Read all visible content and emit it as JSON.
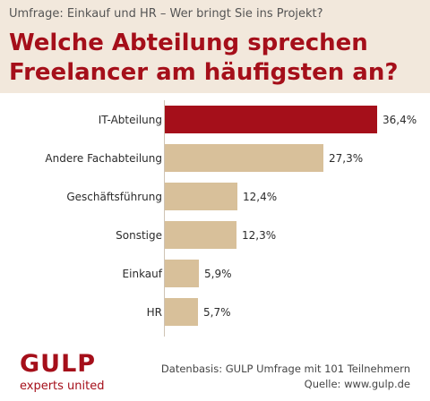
{
  "header": {
    "subtitle": "Umfrage: Einkauf und HR – Wer bringt Sie ins Projekt?",
    "title": "Welche Abteilung sprechen Freelancer am häufigsten an?"
  },
  "chart_data": {
    "type": "bar",
    "orientation": "horizontal",
    "categories": [
      "IT-Abteilung",
      "Andere Fachabteilung",
      "Geschäftsführung",
      "Sonstige",
      "Einkauf",
      "HR"
    ],
    "values": [
      36.4,
      27.3,
      12.4,
      12.3,
      5.9,
      5.7
    ],
    "value_labels": [
      "36,4%",
      "27,3%",
      "12,4%",
      "12,3%",
      "5,9%",
      "5,7%"
    ],
    "unit": "%",
    "xlim": [
      0,
      40
    ],
    "highlight_color": "#a50f1a",
    "bar_color": "#d8c09a",
    "highlight_index": 0
  },
  "footer": {
    "logo": "GULP",
    "logo_tagline": "experts united",
    "source_line1": "Datenbasis: GULP Umfrage mit 101 Teilnehmern",
    "source_line2": "Quelle: www.gulp.de"
  },
  "colors": {
    "brand": "#a50f1a",
    "header_bg": "#f2e8dc"
  }
}
